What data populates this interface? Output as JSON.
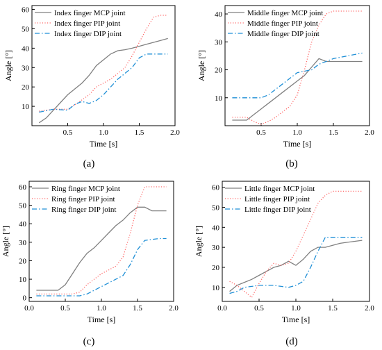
{
  "chart_data": [
    {
      "type": "line",
      "caption": "(a)",
      "xlabel": "Time [s]",
      "ylabel": "Angle [°]",
      "xlim": [
        0,
        2.0
      ],
      "ylim": [
        0,
        62
      ],
      "xticks": [
        "0.5",
        "1.0",
        "1.5",
        "2.0"
      ],
      "yticks": [
        "10",
        "20",
        "30",
        "40",
        "50",
        "60"
      ],
      "legend_position": "top-left",
      "series": [
        {
          "name": "Index finger MCP joint",
          "color": "#808080",
          "dash": "solid",
          "points": [
            [
              0.1,
              1.5
            ],
            [
              0.2,
              4
            ],
            [
              0.3,
              8
            ],
            [
              0.4,
              12
            ],
            [
              0.5,
              16
            ],
            [
              0.6,
              19
            ],
            [
              0.7,
              22
            ],
            [
              0.8,
              26
            ],
            [
              0.9,
              31
            ],
            [
              1.0,
              34
            ],
            [
              1.1,
              37
            ],
            [
              1.2,
              38.7
            ],
            [
              1.3,
              39.2
            ],
            [
              1.4,
              40
            ],
            [
              1.5,
              41
            ],
            [
              1.6,
              42
            ],
            [
              1.7,
              43
            ],
            [
              1.8,
              44
            ],
            [
              1.9,
              45
            ]
          ]
        },
        {
          "name": "Index finger PIP joint",
          "color": "#ff6666",
          "dash": "dot",
          "points": [
            [
              0.1,
              7.5
            ],
            [
              0.3,
              8.5
            ],
            [
              0.5,
              8.5
            ],
            [
              0.65,
              12
            ],
            [
              0.8,
              16
            ],
            [
              0.9,
              20
            ],
            [
              1.0,
              22
            ],
            [
              1.1,
              24
            ],
            [
              1.2,
              27
            ],
            [
              1.3,
              30
            ],
            [
              1.4,
              36
            ],
            [
              1.5,
              43
            ],
            [
              1.6,
              50
            ],
            [
              1.7,
              56
            ],
            [
              1.8,
              57
            ],
            [
              1.9,
              57
            ]
          ]
        },
        {
          "name": "Index finger DIP joint",
          "color": "#1f8fd6",
          "dash": "dashdot",
          "points": [
            [
              0.1,
              7
            ],
            [
              0.3,
              8.5
            ],
            [
              0.5,
              8
            ],
            [
              0.6,
              11
            ],
            [
              0.7,
              12.5
            ],
            [
              0.8,
              11.5
            ],
            [
              0.9,
              13
            ],
            [
              1.0,
              16
            ],
            [
              1.1,
              20
            ],
            [
              1.2,
              24
            ],
            [
              1.3,
              27
            ],
            [
              1.4,
              30
            ],
            [
              1.5,
              35
            ],
            [
              1.6,
              37
            ],
            [
              1.7,
              37
            ],
            [
              1.8,
              37
            ],
            [
              1.9,
              37
            ]
          ]
        }
      ]
    },
    {
      "type": "line",
      "caption": "(b)",
      "xlabel": "Time [s]",
      "ylabel": "Angle [°]",
      "xlim": [
        0,
        2.0
      ],
      "ylim": [
        0,
        43
      ],
      "xticks": [
        "0.5",
        "1.0",
        "1.5",
        "2.0"
      ],
      "yticks": [
        "10",
        "20",
        "30",
        "40"
      ],
      "legend_position": "top-left",
      "series": [
        {
          "name": "Middle finger MCP joint",
          "color": "#808080",
          "dash": "solid",
          "points": [
            [
              0.1,
              2
            ],
            [
              0.2,
              2
            ],
            [
              0.3,
              2
            ],
            [
              0.4,
              4
            ],
            [
              0.5,
              6
            ],
            [
              0.6,
              8
            ],
            [
              0.7,
              10
            ],
            [
              0.8,
              12
            ],
            [
              0.9,
              14
            ],
            [
              1.0,
              16
            ],
            [
              1.1,
              18
            ],
            [
              1.2,
              21
            ],
            [
              1.3,
              24
            ],
            [
              1.4,
              23
            ],
            [
              1.5,
              23
            ],
            [
              1.6,
              23
            ],
            [
              1.7,
              23
            ],
            [
              1.8,
              23
            ],
            [
              1.9,
              23
            ]
          ]
        },
        {
          "name": "Middle finger PIP joint",
          "color": "#ff6666",
          "dash": "dot",
          "points": [
            [
              0.1,
              3
            ],
            [
              0.3,
              3
            ],
            [
              0.4,
              1.5
            ],
            [
              0.5,
              0.5
            ],
            [
              0.6,
              1.5
            ],
            [
              0.7,
              3
            ],
            [
              0.8,
              5
            ],
            [
              0.9,
              7
            ],
            [
              1.0,
              11
            ],
            [
              1.1,
              20
            ],
            [
              1.2,
              30
            ],
            [
              1.3,
              36
            ],
            [
              1.4,
              40
            ],
            [
              1.5,
              41
            ],
            [
              1.6,
              41
            ],
            [
              1.7,
              41
            ],
            [
              1.8,
              41
            ],
            [
              1.9,
              41
            ]
          ]
        },
        {
          "name": "Middle finger DIP joint",
          "color": "#1f8fd6",
          "dash": "dashdot",
          "points": [
            [
              0.1,
              10
            ],
            [
              0.3,
              10
            ],
            [
              0.5,
              10
            ],
            [
              0.6,
              11
            ],
            [
              0.7,
              13
            ],
            [
              0.8,
              15
            ],
            [
              0.9,
              17
            ],
            [
              1.0,
              19
            ],
            [
              1.1,
              19.5
            ],
            [
              1.2,
              20
            ],
            [
              1.3,
              22
            ],
            [
              1.4,
              23
            ],
            [
              1.5,
              24
            ],
            [
              1.6,
              24.5
            ],
            [
              1.7,
              25
            ],
            [
              1.8,
              25.5
            ],
            [
              1.9,
              26
            ]
          ]
        }
      ]
    },
    {
      "type": "line",
      "caption": "(c)",
      "xlabel": "Time [s]",
      "ylabel": "Angle [°]",
      "xlim": [
        0,
        2.0
      ],
      "ylim": [
        -2,
        63
      ],
      "xticks": [
        "0.0",
        "0.5",
        "1.0",
        "1.5",
        "2.0"
      ],
      "yticks": [
        "0",
        "10",
        "20",
        "30",
        "40",
        "50",
        "60"
      ],
      "legend_position": "top-left",
      "series": [
        {
          "name": "Ring finger MCP joint",
          "color": "#808080",
          "dash": "solid",
          "points": [
            [
              0.1,
              4
            ],
            [
              0.3,
              4
            ],
            [
              0.4,
              4
            ],
            [
              0.5,
              7
            ],
            [
              0.6,
              13
            ],
            [
              0.7,
              19
            ],
            [
              0.8,
              24
            ],
            [
              0.9,
              27
            ],
            [
              1.0,
              31
            ],
            [
              1.1,
              35
            ],
            [
              1.2,
              39
            ],
            [
              1.3,
              42
            ],
            [
              1.4,
              46
            ],
            [
              1.5,
              49
            ],
            [
              1.6,
              49
            ],
            [
              1.7,
              47
            ],
            [
              1.8,
              47
            ],
            [
              1.9,
              47
            ]
          ]
        },
        {
          "name": "Ring finger PIP joint",
          "color": "#ff6666",
          "dash": "dot",
          "points": [
            [
              0.1,
              2
            ],
            [
              0.3,
              2
            ],
            [
              0.5,
              2
            ],
            [
              0.6,
              2
            ],
            [
              0.7,
              3
            ],
            [
              0.8,
              7
            ],
            [
              0.9,
              10
            ],
            [
              1.0,
              13
            ],
            [
              1.1,
              15
            ],
            [
              1.2,
              17
            ],
            [
              1.3,
              22
            ],
            [
              1.4,
              35
            ],
            [
              1.5,
              50
            ],
            [
              1.6,
              60
            ],
            [
              1.7,
              60
            ],
            [
              1.8,
              60
            ],
            [
              1.9,
              60
            ]
          ]
        },
        {
          "name": "Ring finger DIP joint",
          "color": "#1f8fd6",
          "dash": "dashdot",
          "points": [
            [
              0.1,
              1
            ],
            [
              0.3,
              1
            ],
            [
              0.5,
              1
            ],
            [
              0.6,
              1
            ],
            [
              0.7,
              1
            ],
            [
              0.8,
              2
            ],
            [
              0.9,
              4
            ],
            [
              1.0,
              6
            ],
            [
              1.1,
              8
            ],
            [
              1.2,
              10
            ],
            [
              1.3,
              12
            ],
            [
              1.4,
              18
            ],
            [
              1.5,
              26
            ],
            [
              1.6,
              31
            ],
            [
              1.7,
              31.5
            ],
            [
              1.8,
              32
            ],
            [
              1.9,
              32
            ]
          ]
        }
      ]
    },
    {
      "type": "line",
      "caption": "(d)",
      "xlabel": "Time [s]",
      "ylabel": "Angle [°]",
      "xlim": [
        0,
        2.0
      ],
      "ylim": [
        3,
        63
      ],
      "xticks": [
        "0.0",
        "0.5",
        "1.0",
        "1.5",
        "2.0"
      ],
      "yticks": [
        "10",
        "20",
        "30",
        "40",
        "50",
        "60"
      ],
      "legend_position": "top-left",
      "series": [
        {
          "name": "Little finger MCP joint",
          "color": "#808080",
          "dash": "solid",
          "points": [
            [
              0.1,
              8
            ],
            [
              0.2,
              11
            ],
            [
              0.3,
              12.5
            ],
            [
              0.4,
              14
            ],
            [
              0.5,
              16
            ],
            [
              0.6,
              18
            ],
            [
              0.7,
              20
            ],
            [
              0.8,
              21
            ],
            [
              0.9,
              23
            ],
            [
              1.0,
              21
            ],
            [
              1.1,
              24
            ],
            [
              1.2,
              28
            ],
            [
              1.3,
              30
            ],
            [
              1.4,
              30
            ],
            [
              1.5,
              31
            ],
            [
              1.6,
              32
            ],
            [
              1.7,
              32.5
            ],
            [
              1.8,
              33
            ],
            [
              1.9,
              33.5
            ]
          ]
        },
        {
          "name": "Little finger PIP joint",
          "color": "#ff6666",
          "dash": "dot",
          "points": [
            [
              0.1,
              13
            ],
            [
              0.2,
              11
            ],
            [
              0.3,
              8
            ],
            [
              0.4,
              5
            ],
            [
              0.5,
              12
            ],
            [
              0.6,
              18
            ],
            [
              0.7,
              22
            ],
            [
              0.8,
              21
            ],
            [
              0.9,
              22
            ],
            [
              1.0,
              28
            ],
            [
              1.1,
              36
            ],
            [
              1.2,
              44
            ],
            [
              1.3,
              52
            ],
            [
              1.4,
              56
            ],
            [
              1.5,
              58
            ],
            [
              1.6,
              58
            ],
            [
              1.7,
              58
            ],
            [
              1.8,
              58
            ],
            [
              1.9,
              58
            ]
          ]
        },
        {
          "name": "Little finger DIP joint",
          "color": "#1f8fd6",
          "dash": "dashdot",
          "points": [
            [
              0.1,
              7
            ],
            [
              0.2,
              8
            ],
            [
              0.3,
              10
            ],
            [
              0.4,
              10.5
            ],
            [
              0.5,
              11
            ],
            [
              0.6,
              11
            ],
            [
              0.7,
              11
            ],
            [
              0.8,
              10.5
            ],
            [
              0.9,
              10
            ],
            [
              1.0,
              11
            ],
            [
              1.1,
              13
            ],
            [
              1.2,
              20
            ],
            [
              1.3,
              28
            ],
            [
              1.4,
              35
            ],
            [
              1.5,
              35
            ],
            [
              1.6,
              35
            ],
            [
              1.7,
              35
            ],
            [
              1.8,
              35
            ],
            [
              1.9,
              35
            ]
          ]
        }
      ]
    }
  ]
}
